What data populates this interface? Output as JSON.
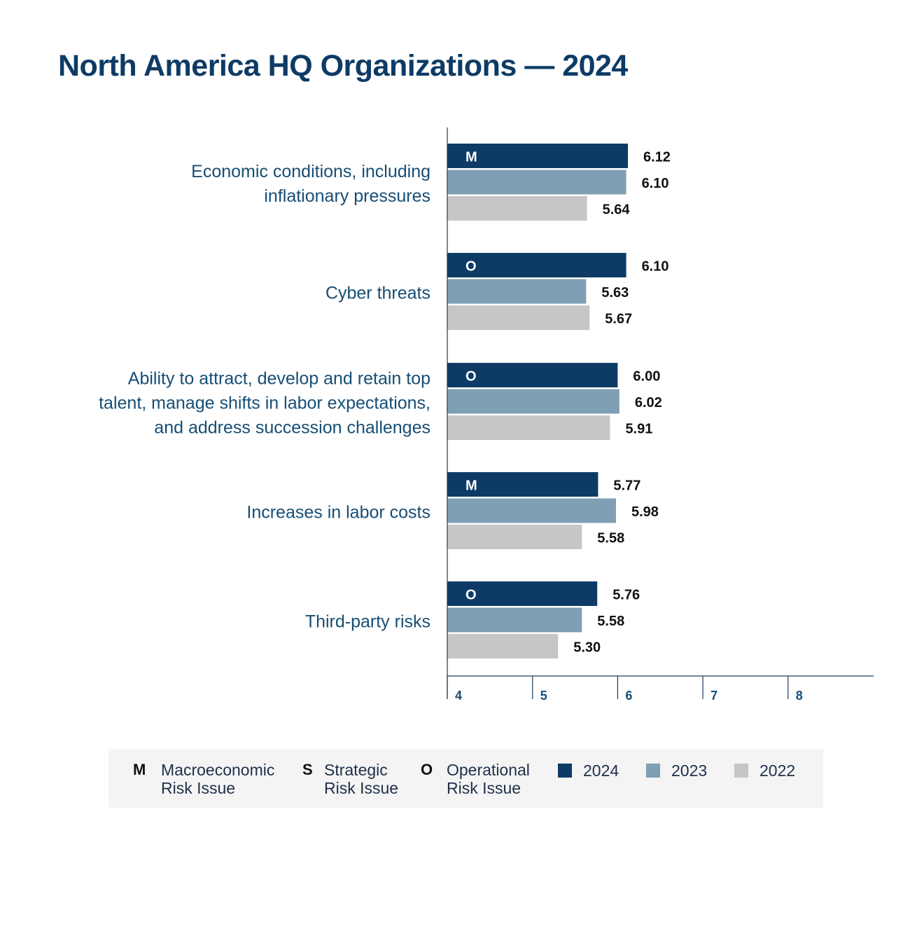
{
  "chart_data": {
    "type": "bar",
    "orientation": "horizontal",
    "title": "North America HQ Organizations — 2024",
    "xlim": [
      4,
      9
    ],
    "xticks": [
      "4",
      "5",
      "6",
      "7",
      "8"
    ],
    "colors": {
      "2024": "#0d3b66",
      "2023": "#7f9fb4",
      "2022": "#c6c6c6"
    },
    "categories": [
      {
        "label": [
          "Economic conditions, including",
          "inflationary pressures"
        ],
        "risk_type": "M"
      },
      {
        "label": [
          "Cyber threats"
        ],
        "risk_type": "O"
      },
      {
        "label": [
          "Ability to attract, develop and retain top",
          "talent, manage shifts in labor expectations,",
          "and address succession challenges"
        ],
        "risk_type": "O"
      },
      {
        "label": [
          "Increases in labor costs"
        ],
        "risk_type": "M"
      },
      {
        "label": [
          "Third-party risks"
        ],
        "risk_type": "O"
      }
    ],
    "series": [
      {
        "name": "2024",
        "values": [
          6.12,
          6.1,
          6.0,
          5.77,
          5.76
        ],
        "labels": [
          "6.12",
          "6.10",
          "6.00",
          "5.77",
          "5.76"
        ]
      },
      {
        "name": "2023",
        "values": [
          6.1,
          5.63,
          6.02,
          5.98,
          5.58
        ],
        "labels": [
          "6.10",
          "5.63",
          "6.02",
          "5.98",
          "5.58"
        ]
      },
      {
        "name": "2022",
        "values": [
          5.64,
          5.67,
          5.91,
          5.58,
          5.3
        ],
        "labels": [
          "5.64",
          "5.67",
          "5.91",
          "5.58",
          "5.30"
        ]
      }
    ]
  },
  "legend": {
    "types": [
      {
        "code": "M",
        "line1": "Macroeconomic",
        "line2": "Risk Issue"
      },
      {
        "code": "S",
        "line1": "Strategic",
        "line2": "Risk Issue"
      },
      {
        "code": "O",
        "line1": "Operational",
        "line2": "Risk Issue"
      }
    ],
    "years": [
      "2024",
      "2023",
      "2022"
    ]
  }
}
